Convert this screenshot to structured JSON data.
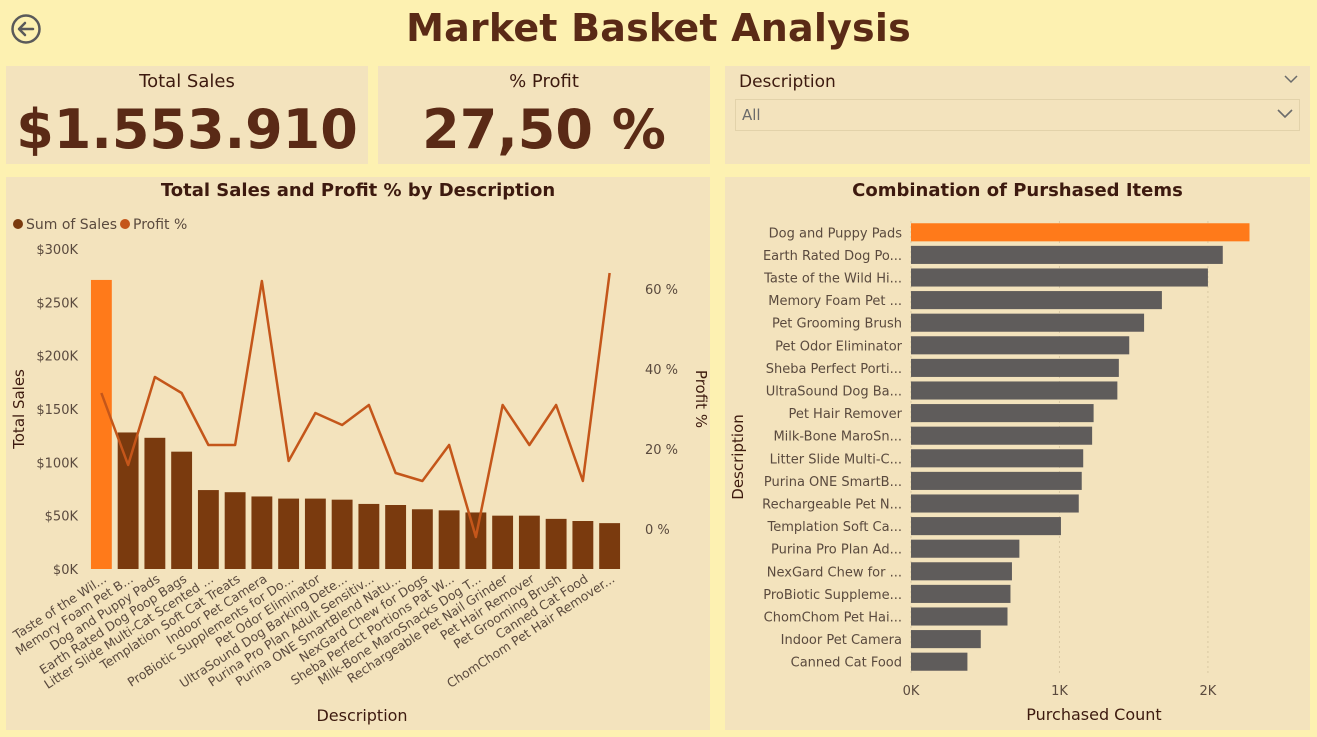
{
  "header": {
    "title": "Market Basket Analysis"
  },
  "kpis": {
    "total_sales": {
      "label": "Total Sales",
      "value": "$1.553.910"
    },
    "profit": {
      "label": "% Profit",
      "value": "27,50 %"
    }
  },
  "slicer": {
    "title": "Description",
    "value": "All"
  },
  "colors": {
    "background": "#fdf1b1",
    "card": "#f3e3bd",
    "bar_brown": "#7a3a0e",
    "bar_orange": "#ff7a1a",
    "line": "#c4561a",
    "bar_gray": "#5f5c5b"
  },
  "chart_data": [
    {
      "type": "bar",
      "title": "Total Sales and Profit % by Description",
      "xlabel": "Description",
      "ylabel": "Total Sales",
      "y2label": "Profit %",
      "legend": "top-left",
      "categories": [
        "Taste of the Wil...",
        "Memory Foam Pet B...",
        "Dog and Puppy Pads",
        "Earth Rated Dog Poop Bags",
        "Litter Slide Multi-Cat Scented ...",
        "Templation Soft Cat Treats",
        "Indoor Pet Camera",
        "ProBiotic Supplements for Do...",
        "Pet Odor Eliminator",
        "UltraSound Dog Barking Dete...",
        "Purina Pro Plan Adult Sensitiv...",
        "Purina ONE SmartBlend Natu...",
        "NexGard Chew for Dogs",
        "Sheba Perfect Portions Pat W...",
        "Milk-Bone MaroSnacks Dog T...",
        "Rechargeable Pet Nail Grinder",
        "Pet Hair Remover",
        "Pet Grooming Brush",
        "Canned Cat Food",
        "ChomChom Pet Hair Remover..."
      ],
      "series": [
        {
          "name": "Sum of Sales",
          "values": [
            271000,
            128000,
            123000,
            110000,
            74000,
            72000,
            68000,
            66000,
            66000,
            65000,
            61000,
            60000,
            56000,
            55000,
            53000,
            50000,
            50000,
            47000,
            45000,
            43000
          ]
        },
        {
          "name": "Profit %",
          "values": [
            34,
            16,
            38,
            34,
            21,
            21,
            62,
            17,
            29,
            26,
            31,
            14,
            12,
            21,
            -2,
            31,
            21,
            31,
            12,
            64
          ]
        }
      ],
      "yticks": [
        "$0K",
        "$50K",
        "$100K",
        "$150K",
        "$200K",
        "$250K",
        "$300K"
      ],
      "ylim": [
        0,
        300000
      ],
      "y2ticks": [
        "0 %",
        "20 %",
        "40 %",
        "60 %"
      ],
      "y2lim": [
        -10,
        70
      ]
    },
    {
      "type": "bar",
      "orientation": "horizontal",
      "title": "Combination of Purshased Items",
      "xlabel": "Purchased Count",
      "ylabel": "Description",
      "categories": [
        "Dog and Puppy Pads",
        "Earth Rated Dog Po...",
        "Taste of the Wild Hi...",
        "Memory Foam Pet ...",
        "Pet Grooming Brush",
        "Pet Odor Eliminator",
        "Sheba Perfect Porti...",
        "UltraSound Dog Ba...",
        "Pet Hair Remover",
        "Milk-Bone MaroSn...",
        "Litter Slide Multi-C...",
        "Purina ONE SmartB...",
        "Rechargeable Pet N...",
        "Templation Soft Ca...",
        "Purina Pro Plan Ad...",
        "NexGard Chew for ...",
        "ProBiotic Suppleme...",
        "ChomChom Pet Hai...",
        "Indoor Pet Camera",
        "Canned Cat Food"
      ],
      "values": [
        2280,
        2100,
        2000,
        1690,
        1570,
        1470,
        1400,
        1390,
        1230,
        1220,
        1160,
        1150,
        1130,
        1010,
        730,
        680,
        670,
        650,
        470,
        380
      ],
      "xticks": [
        "0K",
        "1K",
        "2K"
      ],
      "xlim": [
        0,
        2600
      ]
    }
  ]
}
